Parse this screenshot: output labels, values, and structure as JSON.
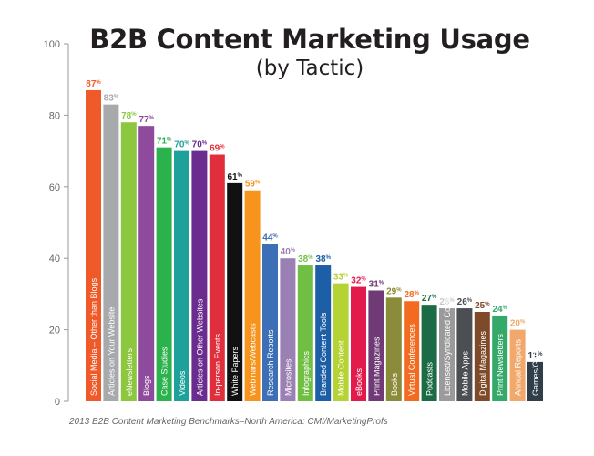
{
  "chart_data": {
    "type": "bar",
    "title": "B2B Content Marketing Usage",
    "subtitle": "(by Tactic)",
    "source": "2013 B2B Content Marketing Benchmarks–North America: CMI/MarketingProfs",
    "ylim": [
      0,
      100
    ],
    "yticks": [
      "0",
      "20",
      "40",
      "60",
      "80",
      "100"
    ],
    "grid": false,
    "value_suffix": "%",
    "categories": [
      "Social Media – Other than Blogs",
      "Articles on Your Website",
      "eNewsletters",
      "Blogs",
      "Case Studies",
      "Videos",
      "Articles on Other Websites",
      "In-person Events",
      "White Papers",
      "Webinars/Webcasts",
      "Research Reports",
      "Microsites",
      "Infographics",
      "Branded Content Tools",
      "Mobile Content",
      "eBooks",
      "Print Magazines",
      "Books",
      "Virtual Conferences",
      "Podcasts",
      "Licensed/Syndicated Content",
      "Mobile Apps",
      "Digital Magazines",
      "Print Newsletters",
      "Annual Reports",
      "Games/Gamification"
    ],
    "values": [
      87,
      83,
      78,
      77,
      71,
      70,
      70,
      69,
      61,
      59,
      44,
      40,
      38,
      38,
      33,
      32,
      31,
      29,
      28,
      27,
      26,
      26,
      25,
      24,
      20,
      11
    ],
    "colors": [
      "#ef5a28",
      "#a7a9ac",
      "#8dc63f",
      "#8e4b9d",
      "#2bb24c",
      "#1fa19b",
      "#6b2c8f",
      "#e02e3c",
      "#111111",
      "#f7941d",
      "#3d6fb6",
      "#9b80b3",
      "#70bf44",
      "#1d5fa6",
      "#b5d334",
      "#e31b4d",
      "#6f3a76",
      "#8a8c3a",
      "#f26b21",
      "#1b6b46",
      "#9a9a9a",
      "#4b4e52",
      "#7e4a2a",
      "#35a96a",
      "#f1a86c",
      "#2f3e48"
    ],
    "value_label_colors": [
      "#ef5a28",
      "#a7a9ac",
      "#8dc63f",
      "#8e4b9d",
      "#2bb24c",
      "#1fa19b",
      "#6b2c8f",
      "#e02e3c",
      "#111111",
      "#f7941d",
      "#3d6fb6",
      "#9b80b3",
      "#70bf44",
      "#1d5fa6",
      "#b5d334",
      "#e31b4d",
      "#6f3a76",
      "#8a8c3a",
      "#f26b21",
      "#1b6b46",
      "#c8c8c8",
      "#4b4e52",
      "#7e4a2a",
      "#35a96a",
      "#f1a86c",
      "#2f3e48"
    ]
  }
}
